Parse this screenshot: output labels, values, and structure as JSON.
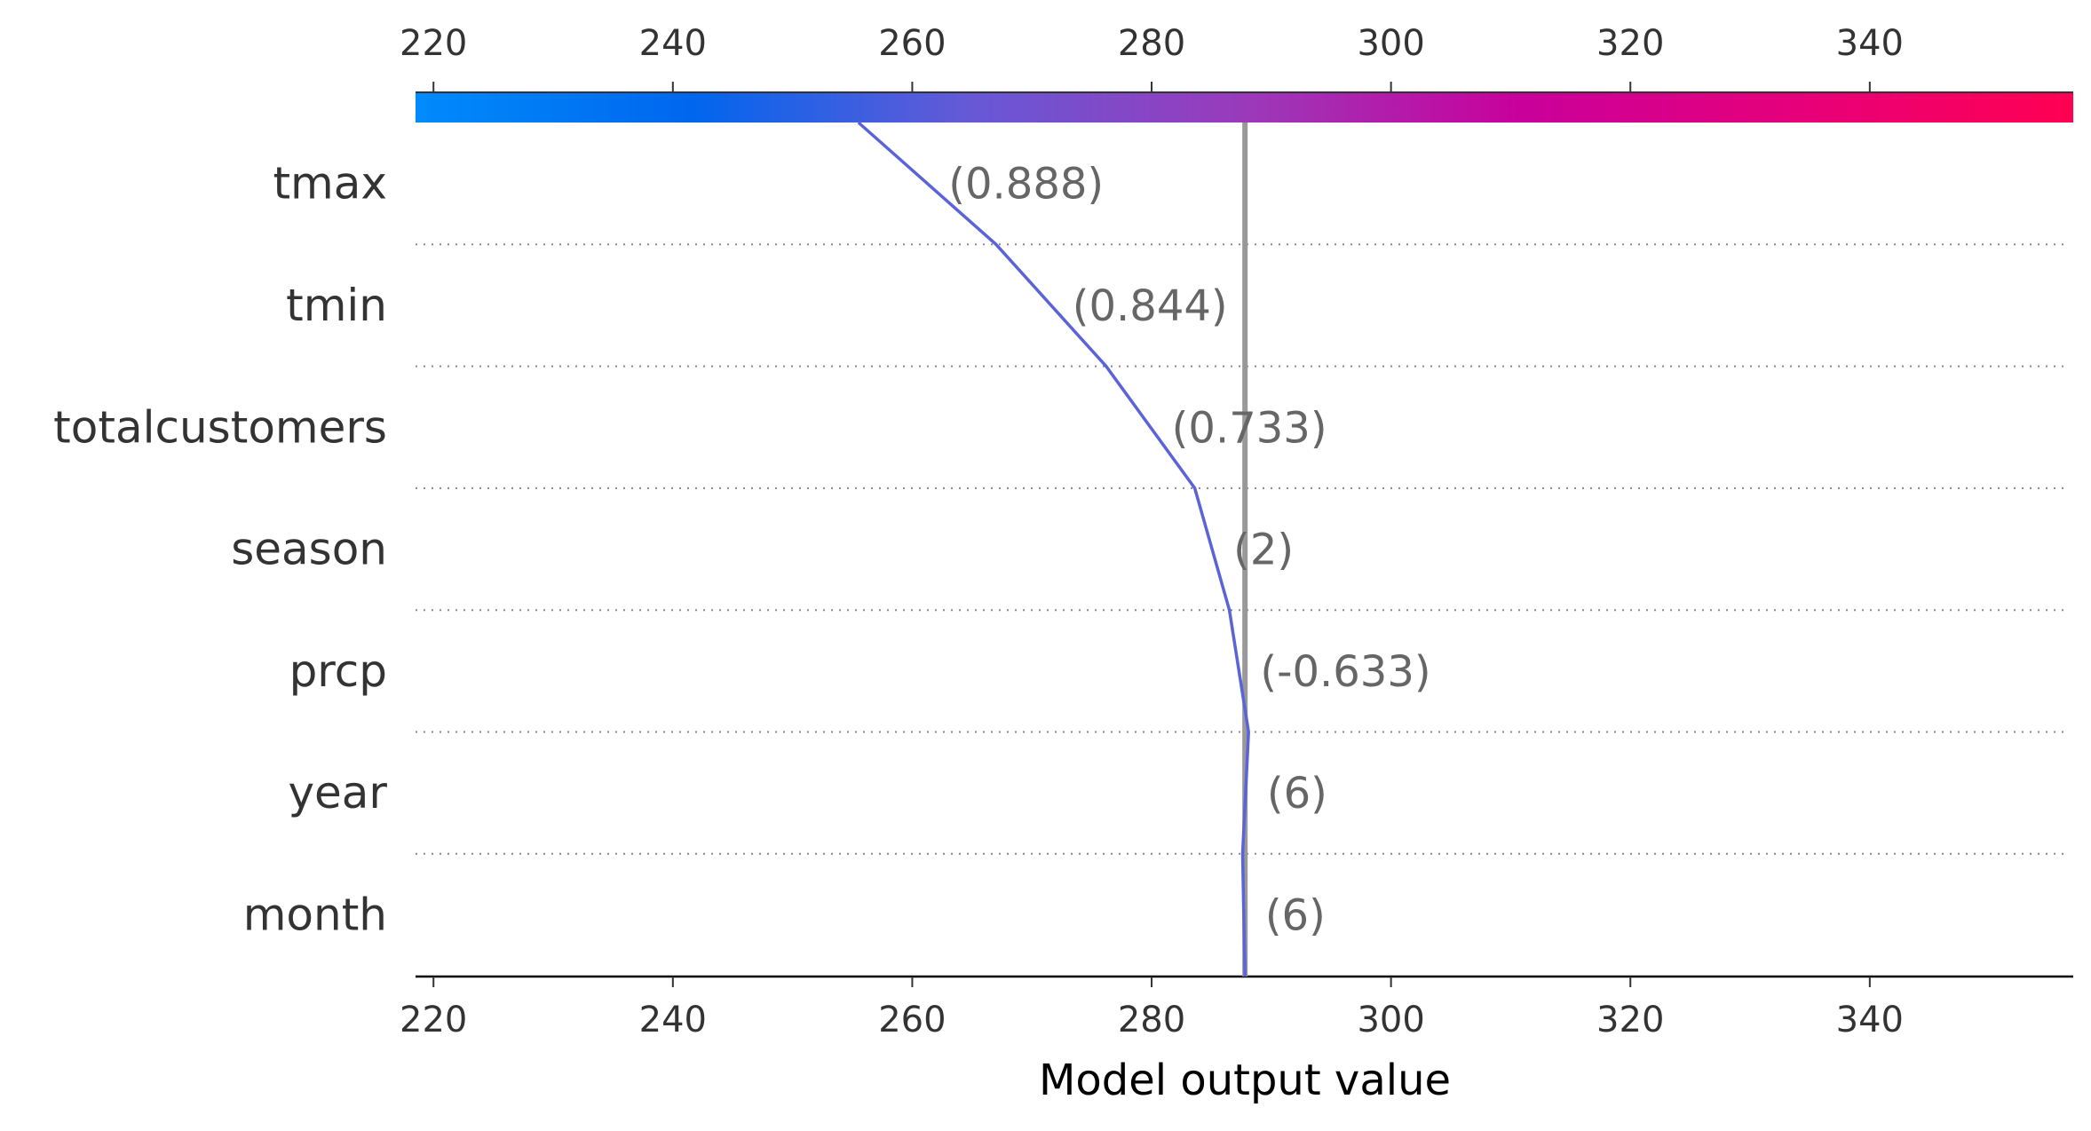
{
  "chart_data": {
    "type": "line",
    "xlabel": "Model output value",
    "xlim": [
      218.5,
      357
    ],
    "xticks": [
      220,
      240,
      260,
      280,
      300,
      320,
      340
    ],
    "base_value": 287.8,
    "features": [
      {
        "name": "tmax",
        "value_label": "(0.888)"
      },
      {
        "name": "tmin",
        "value_label": "(0.844)"
      },
      {
        "name": "totalcustomers",
        "value_label": "(0.733)"
      },
      {
        "name": "season",
        "value_label": "(2)"
      },
      {
        "name": "prcp",
        "value_label": "(-0.633)"
      },
      {
        "name": "year",
        "value_label": "(6)"
      },
      {
        "name": "month",
        "value_label": "(6)"
      }
    ],
    "path_x": [
      255.5,
      267.0,
      276.2,
      283.6,
      286.5,
      288.1,
      287.6,
      287.8
    ],
    "line_color": "#5a63d8",
    "base_line_color": "#999999",
    "colorbar": [
      "#008bfb",
      "#0066ee",
      "#6659d6",
      "#9a3aba",
      "#c9009b",
      "#e6007a",
      "#ff0052"
    ]
  }
}
